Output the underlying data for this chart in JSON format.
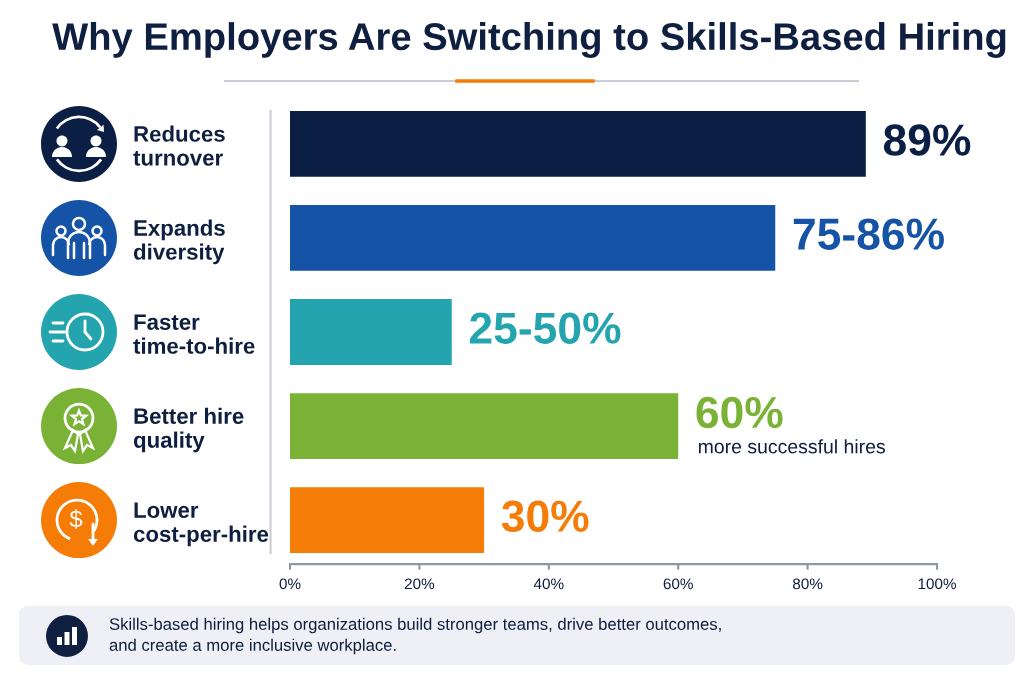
{
  "chart_data": {
    "type": "bar",
    "orientation": "horizontal",
    "title": "Why Employers Are Switching to Skills-Based Hiring",
    "categories": [
      "Reduces\nturnover",
      "Expands\ndiversity",
      "Faster\ntime-to-hire",
      "Better hire\nquality",
      "Lower\ncost-per-hire"
    ],
    "values": [
      89,
      75,
      25,
      60,
      30
    ],
    "colors": [
      "#0b1f45",
      "#1553a6",
      "#24a4ae",
      "#7ab236",
      "#f57c06"
    ],
    "value_labels": [
      "89%",
      "75-86%",
      "25-50%",
      "60%",
      "30%"
    ],
    "xlim": [
      0,
      100
    ],
    "xticks": [
      {
        "value": 0,
        "label": "0%"
      },
      {
        "value": 20,
        "label": "20%"
      },
      {
        "value": 40,
        "label": "40%"
      },
      {
        "value": 60,
        "label": "60%"
      },
      {
        "value": 80,
        "label": "80%"
      },
      {
        "value": 100,
        "label": "100%"
      }
    ],
    "annotations": [
      {
        "text": "more successful hires",
        "x": 60,
        "y": "Better hire\nquality"
      },
      "Skills-based hiring helps organizations build stronger teams, drive better outcomes,\nand create a more inclusive workplace."
    ]
  }
}
